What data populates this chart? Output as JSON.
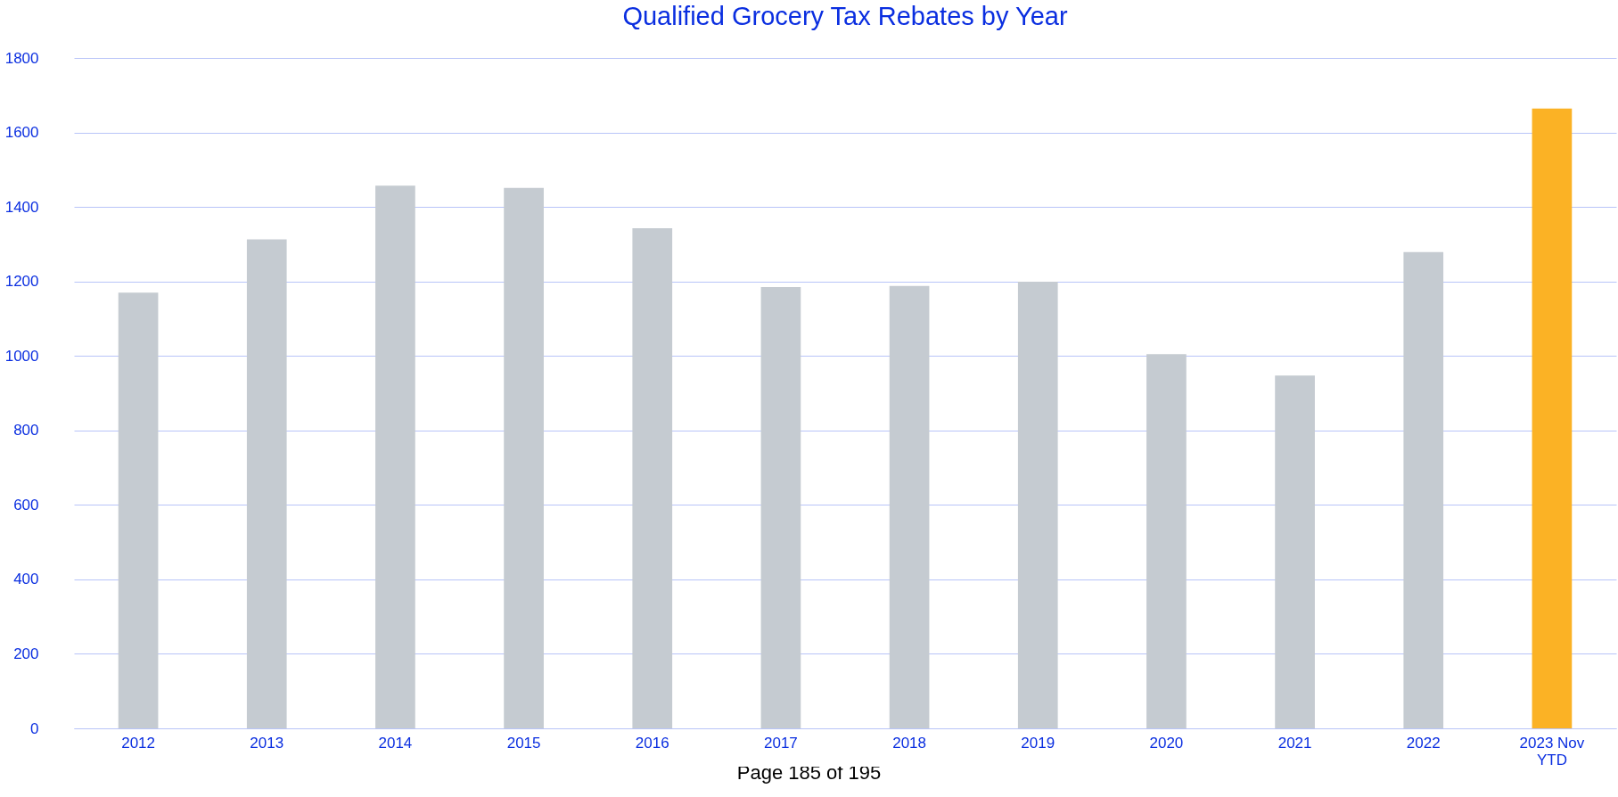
{
  "chart_data": {
    "type": "bar",
    "title": "Qualified Grocery Tax Rebates by Year",
    "categories": [
      "2012",
      "2013",
      "2014",
      "2015",
      "2016",
      "2017",
      "2018",
      "2019",
      "2020",
      "2021",
      "2022",
      "2023 Nov YTD"
    ],
    "values": [
      1170,
      1313,
      1457,
      1451,
      1343,
      1185,
      1188,
      1199,
      1005,
      947,
      1279,
      1664
    ],
    "colors": [
      "#c5cbd1",
      "#c5cbd1",
      "#c5cbd1",
      "#c5cbd1",
      "#c5cbd1",
      "#c5cbd1",
      "#c5cbd1",
      "#c5cbd1",
      "#c5cbd1",
      "#c5cbd1",
      "#c5cbd1",
      "#fbb225"
    ],
    "ylim": [
      0,
      1800
    ],
    "yticks": [
      0,
      200,
      400,
      600,
      800,
      1000,
      1200,
      1400,
      1600,
      1800
    ],
    "grid": "y",
    "annotations": [
      "Page 185 of 195"
    ]
  }
}
